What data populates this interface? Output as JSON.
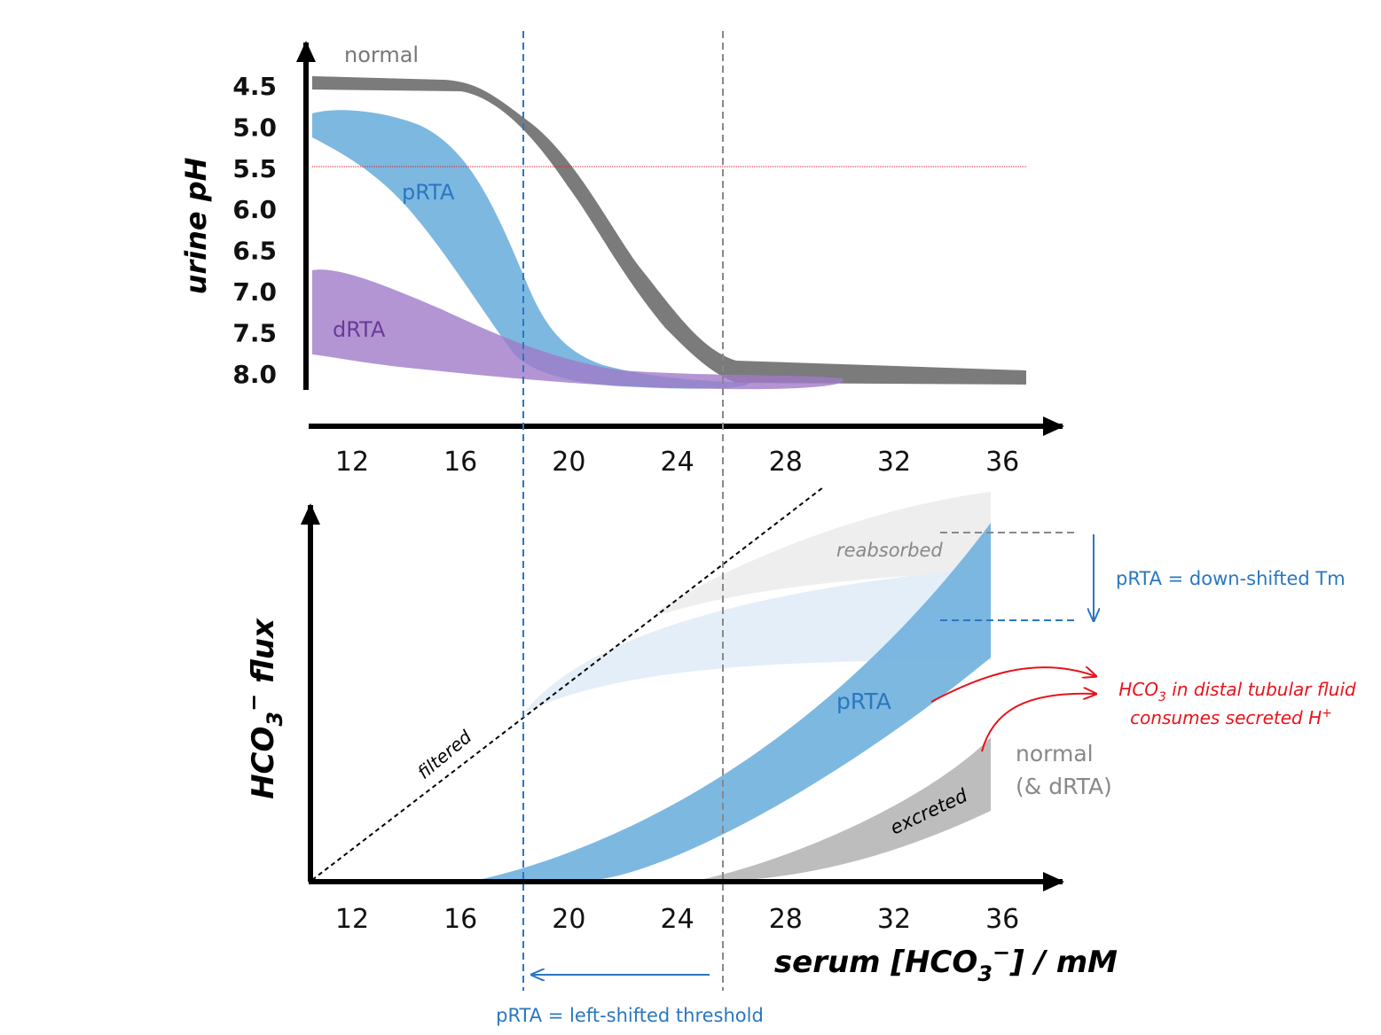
{
  "top": {
    "y_label": "urine pH",
    "yticks": [
      "4.5",
      "5.0",
      "5.5",
      "6.0",
      "6.5",
      "7.0",
      "7.5",
      "8.0"
    ],
    "xticks": [
      "12",
      "16",
      "20",
      "24",
      "28",
      "32",
      "36"
    ],
    "labels": {
      "normal": "normal",
      "prta": "pRTA",
      "drta": "dRTA"
    }
  },
  "bottom": {
    "y_label": [
      "HCO",
      "3",
      "−",
      " flux"
    ],
    "xticks": [
      "12",
      "16",
      "20",
      "24",
      "28",
      "32",
      "36"
    ],
    "x_label": [
      "serum [HCO",
      "3",
      "−",
      "] / mM"
    ],
    "labels": {
      "filtered": "filtered",
      "reabsorbed": "reabsorbed",
      "excreted": "excreted",
      "prta": "pRTA",
      "normal": "normal",
      "normal_drta": "(& dRTA)"
    },
    "annotations": {
      "tm": "pRTA = down-shifted Tm",
      "distal_1": [
        "HCO",
        "3",
        " in distal tubular fluid"
      ],
      "distal_2": [
        "consumes secreted H",
        "+"
      ],
      "threshold": "pRTA = left-shifted threshold"
    }
  }
}
